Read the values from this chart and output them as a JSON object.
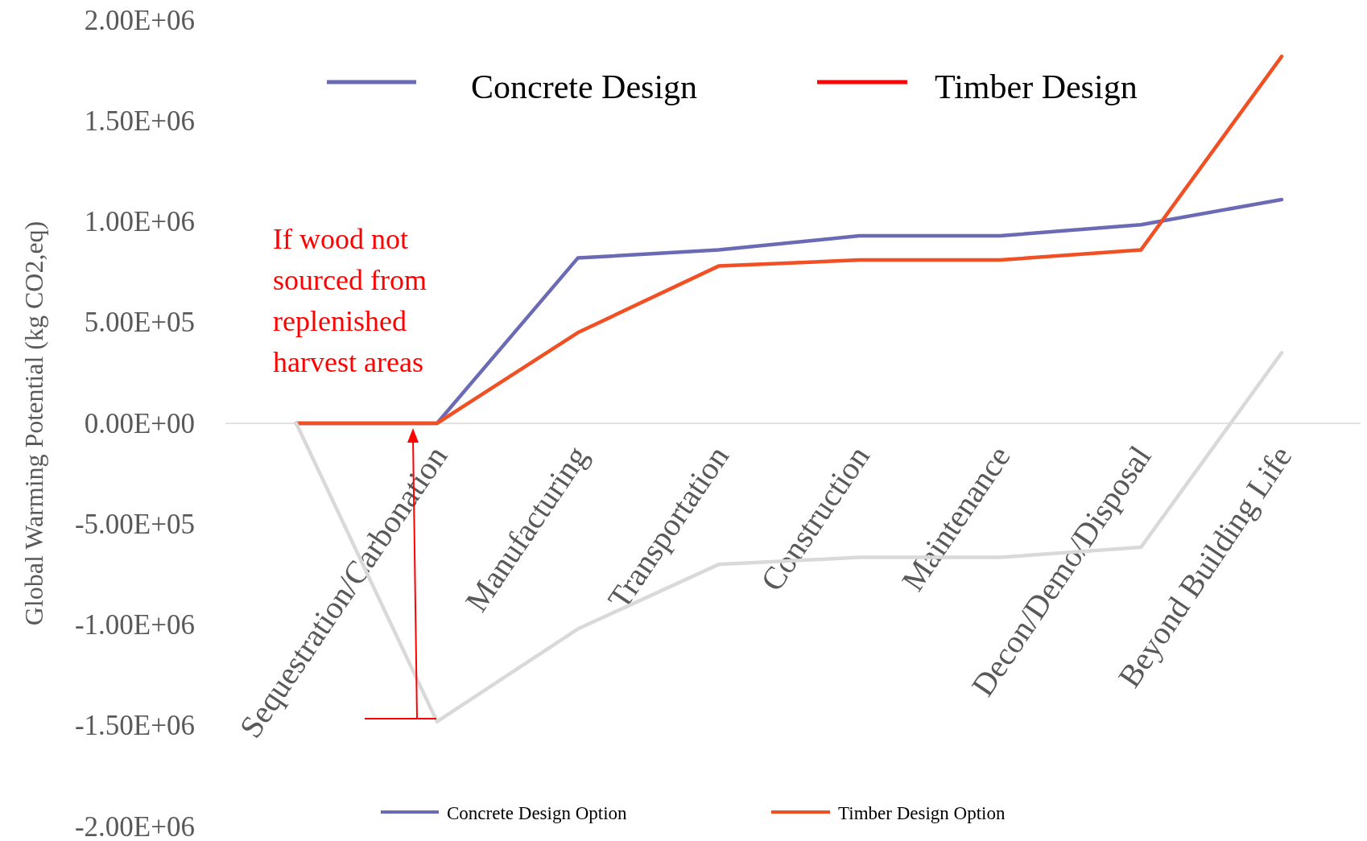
{
  "chart_data": {
    "type": "line",
    "ylabel": "Global Warming Potential (kg CO2,eq)",
    "categories": [
      null,
      "Sequestration/Carbonation",
      "Manufacturing",
      "Transportation",
      "Construction",
      "Maintenance",
      "Decon/Demo/Disposal",
      "Beyond Building Life"
    ],
    "series": [
      {
        "name": "Concrete Design Option",
        "color": "#6b6bb5",
        "values": [
          0,
          0,
          820000,
          860000,
          930000,
          930000,
          985000,
          1110000
        ]
      },
      {
        "name": "Timber Design Option",
        "color": "#f05024",
        "values": [
          0,
          0,
          450000,
          780000,
          810000,
          810000,
          860000,
          1820000
        ]
      },
      {
        "color": "#d9d9d9",
        "values": [
          0,
          -1480000,
          -1020000,
          -700000,
          -665000,
          -665000,
          -615000,
          350000
        ]
      }
    ],
    "ylim": [
      -2000000,
      2000000
    ],
    "yticks": [
      {
        "value": -2000000,
        "label": "-2.00E+06"
      },
      {
        "value": -1500000,
        "label": "-1.50E+06"
      },
      {
        "value": -1000000,
        "label": "-1.00E+06"
      },
      {
        "value": -500000,
        "label": "-5.00E+05"
      },
      {
        "value": 0,
        "label": "0.00E+00"
      },
      {
        "value": 500000,
        "label": "5.00E+05"
      },
      {
        "value": 1000000,
        "label": "1.00E+06"
      },
      {
        "value": 1500000,
        "label": "1.50E+06"
      },
      {
        "value": 2000000,
        "label": "2.00E+06"
      }
    ],
    "legend": "bottom",
    "grid": false,
    "marker": "none",
    "line_style": "solid",
    "annotations": [
      "Concrete Design",
      "Timber Design",
      "If wood not sourced from replenished harvest areas"
    ]
  }
}
